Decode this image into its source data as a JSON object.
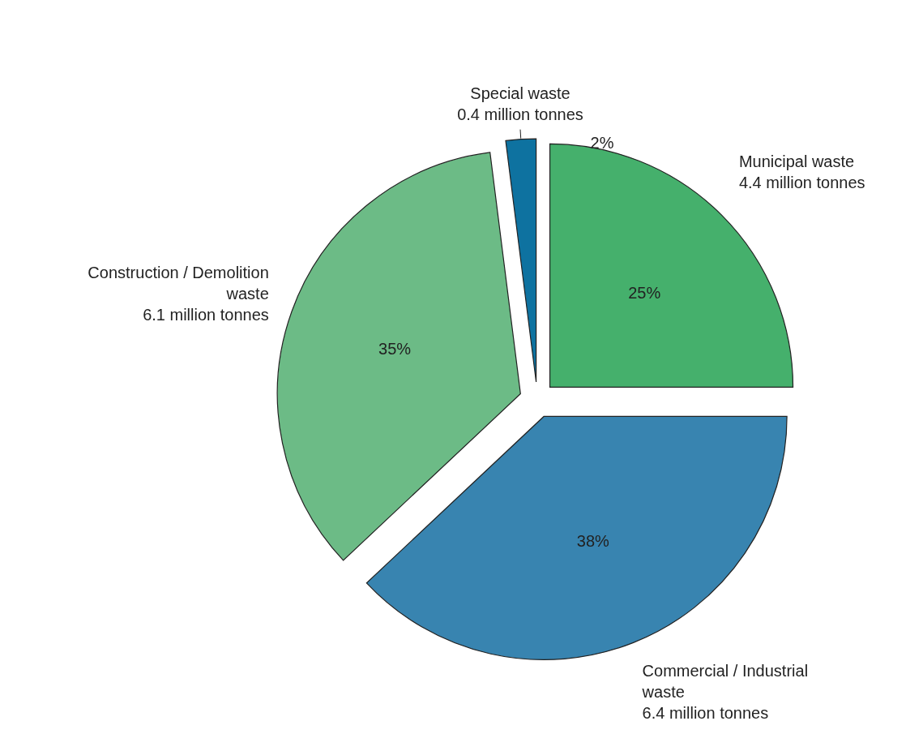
{
  "chart_data": {
    "type": "pie",
    "categories": [
      "Municipal waste\n4.4 million tonnes",
      "Commercial / Industrial\nwaste\n6.4 million tonnes",
      "Construction / Demolition\nwaste\n6.1 million tonnes",
      "Special waste\n0.4 million tonnes"
    ],
    "values": [
      25,
      38,
      35,
      2
    ],
    "value_labels": [
      "25%",
      "38%",
      "35%",
      "2%"
    ],
    "colors": [
      "#45b06c",
      "#3884b0",
      "#6cbb86",
      "#0e72a0"
    ]
  }
}
